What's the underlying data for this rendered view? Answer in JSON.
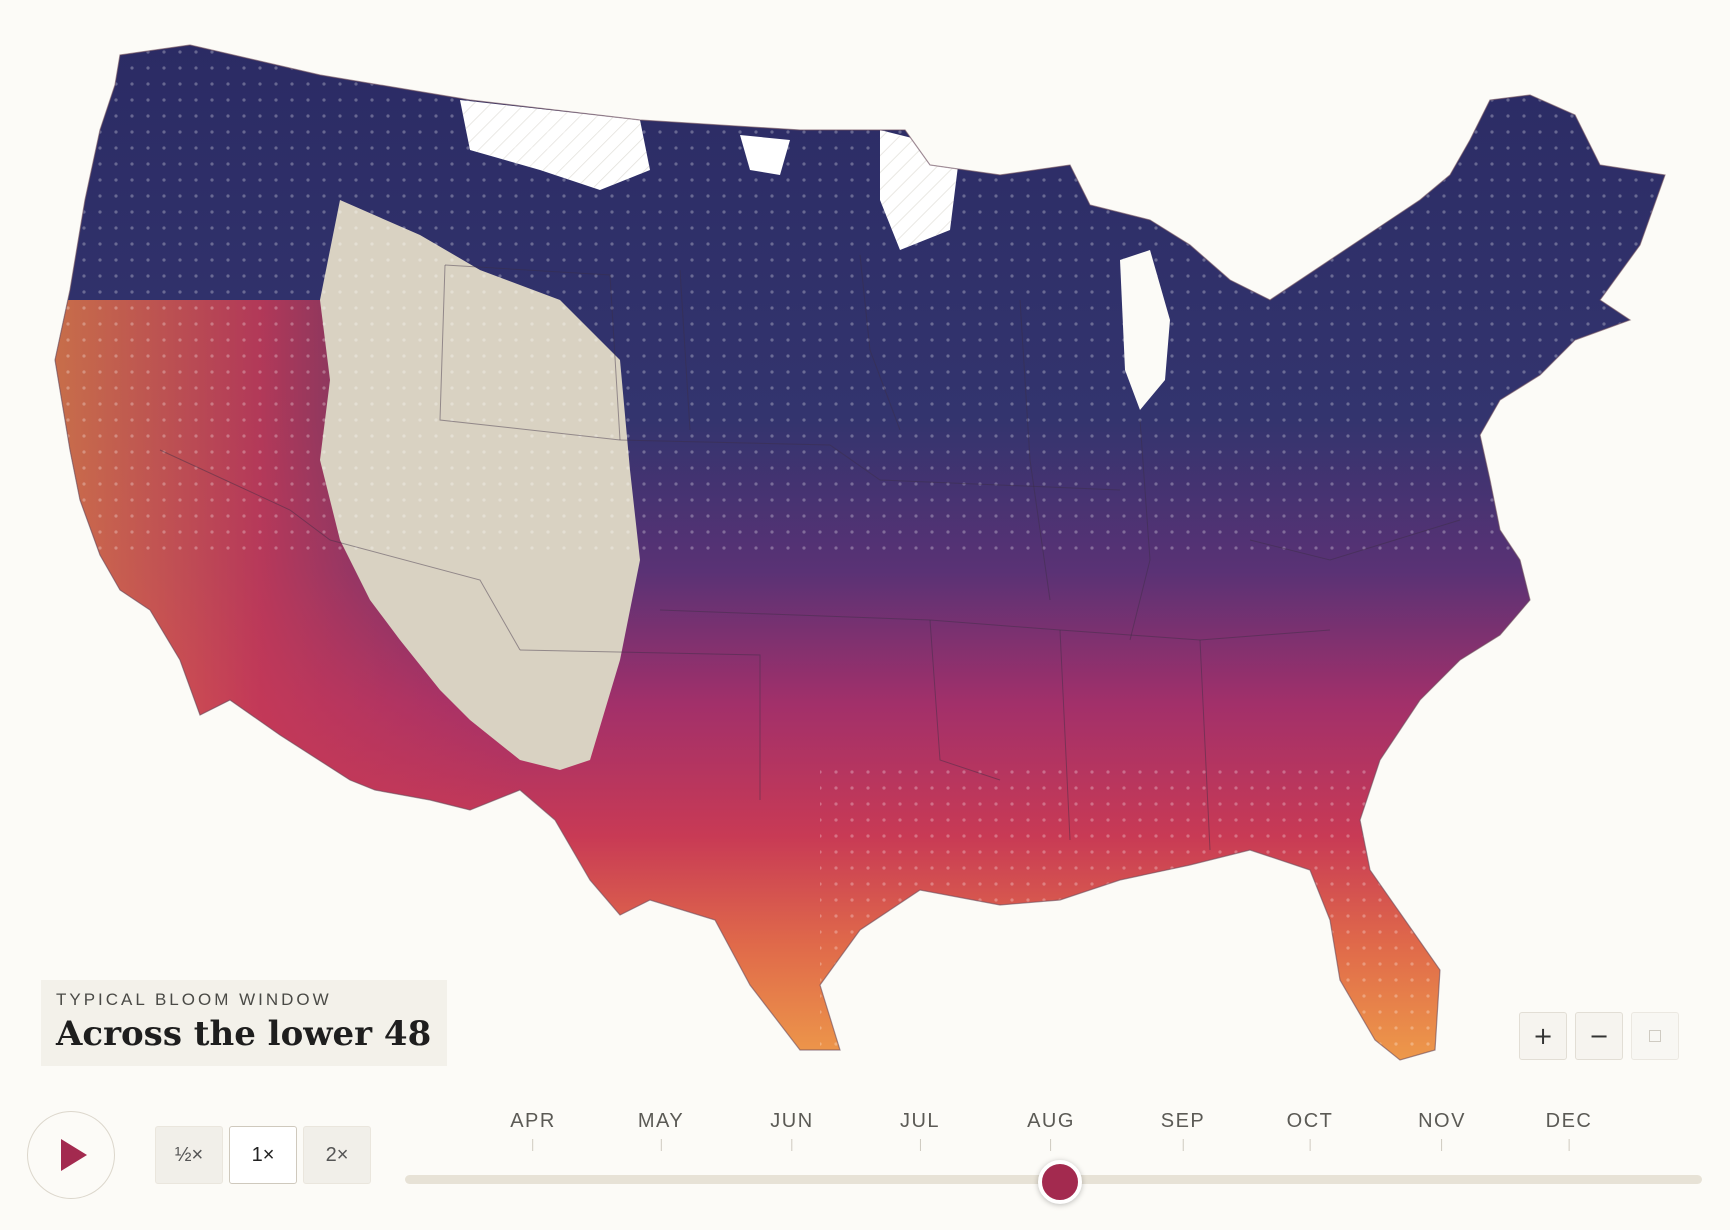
{
  "map": {
    "kicker": "TYPICAL BLOOM WINDOW",
    "title": "Across the lower 48",
    "colors": {
      "bloom_late": "#2a2a63",
      "bloom_mid": "#8a2f6e",
      "bloom_peak": "#c83a55",
      "bloom_early": "#f2a94a",
      "no_data": "#d9d2c2",
      "water_or_none": "#ffffff"
    }
  },
  "zoom": {
    "in_label": "+",
    "out_label": "−",
    "reset_icon": "reset-square-icon"
  },
  "playback": {
    "play_icon": "play-icon",
    "speeds": [
      "½×",
      "1×",
      "2×"
    ],
    "active_speed": "1×"
  },
  "timeline": {
    "months": [
      "APR",
      "MAY",
      "JUN",
      "JUL",
      "AUG",
      "SEP",
      "OCT",
      "NOV",
      "DEC"
    ],
    "current_month": "AUG",
    "accent": "#a32a4f"
  }
}
